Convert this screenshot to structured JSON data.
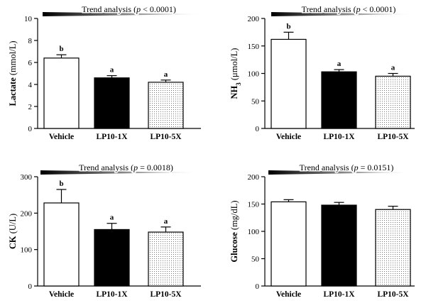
{
  "colors": {
    "vehicle_fill": "#ffffff",
    "lp10_1x_fill": "#000000",
    "lp10_5x_fill": "dotted",
    "axis": "#000000"
  },
  "chart_data": [
    {
      "type": "bar",
      "title": "",
      "trend": {
        "prefix": "Trend analysis (",
        "p": "p",
        "rest": " < 0.0001)"
      },
      "ylabel": {
        "main": "Lactate (mmol/L)",
        "sub": ""
      },
      "categories": [
        "Vehicle",
        "LP10-1X",
        "LP10-5X"
      ],
      "values": [
        6.4,
        4.6,
        4.2
      ],
      "errors": [
        0.3,
        0.2,
        0.2
      ],
      "significance": [
        "b",
        "a",
        "a"
      ],
      "ylim": [
        0,
        10
      ],
      "yticks": [
        0,
        2,
        4,
        6,
        8,
        10
      ]
    },
    {
      "type": "bar",
      "title": "",
      "trend": {
        "prefix": "Trend analysis (",
        "p": "p",
        "rest": " < 0.0001)"
      },
      "ylabel": {
        "main": "NH",
        "sub": "3",
        "unit": " (μmol/L)"
      },
      "categories": [
        "Vehicle",
        "LP10-1X",
        "LP10-5X"
      ],
      "values": [
        162,
        103,
        95
      ],
      "errors": [
        13,
        4,
        5
      ],
      "significance": [
        "b",
        "a",
        "a"
      ],
      "ylim": [
        0,
        200
      ],
      "yticks": [
        0,
        50,
        100,
        150,
        200
      ]
    },
    {
      "type": "bar",
      "title": "",
      "trend": {
        "prefix": "Trend analysis (",
        "p": "p",
        "rest": " = 0.0018)"
      },
      "ylabel": {
        "main": "CK (U/L)",
        "sub": ""
      },
      "categories": [
        "Vehicle",
        "LP10-1X",
        "LP10-5X"
      ],
      "values": [
        228,
        155,
        148
      ],
      "errors": [
        37,
        17,
        14
      ],
      "significance": [
        "b",
        "a",
        "a"
      ],
      "ylim": [
        0,
        300
      ],
      "yticks": [
        0,
        100,
        200,
        300
      ]
    },
    {
      "type": "bar",
      "title": "",
      "trend": {
        "prefix": "Trend analysis (",
        "p": "p",
        "rest": " = 0.0151)"
      },
      "ylabel": {
        "main": "Glucose (mg/dL)",
        "sub": ""
      },
      "categories": [
        "Vehicle",
        "LP10-1X",
        "LP10-5X"
      ],
      "values": [
        154,
        148,
        140
      ],
      "errors": [
        4,
        5,
        6
      ],
      "significance": [
        "",
        "",
        ""
      ],
      "ylim": [
        0,
        200
      ],
      "yticks": [
        0,
        50,
        100,
        150,
        200
      ]
    }
  ]
}
